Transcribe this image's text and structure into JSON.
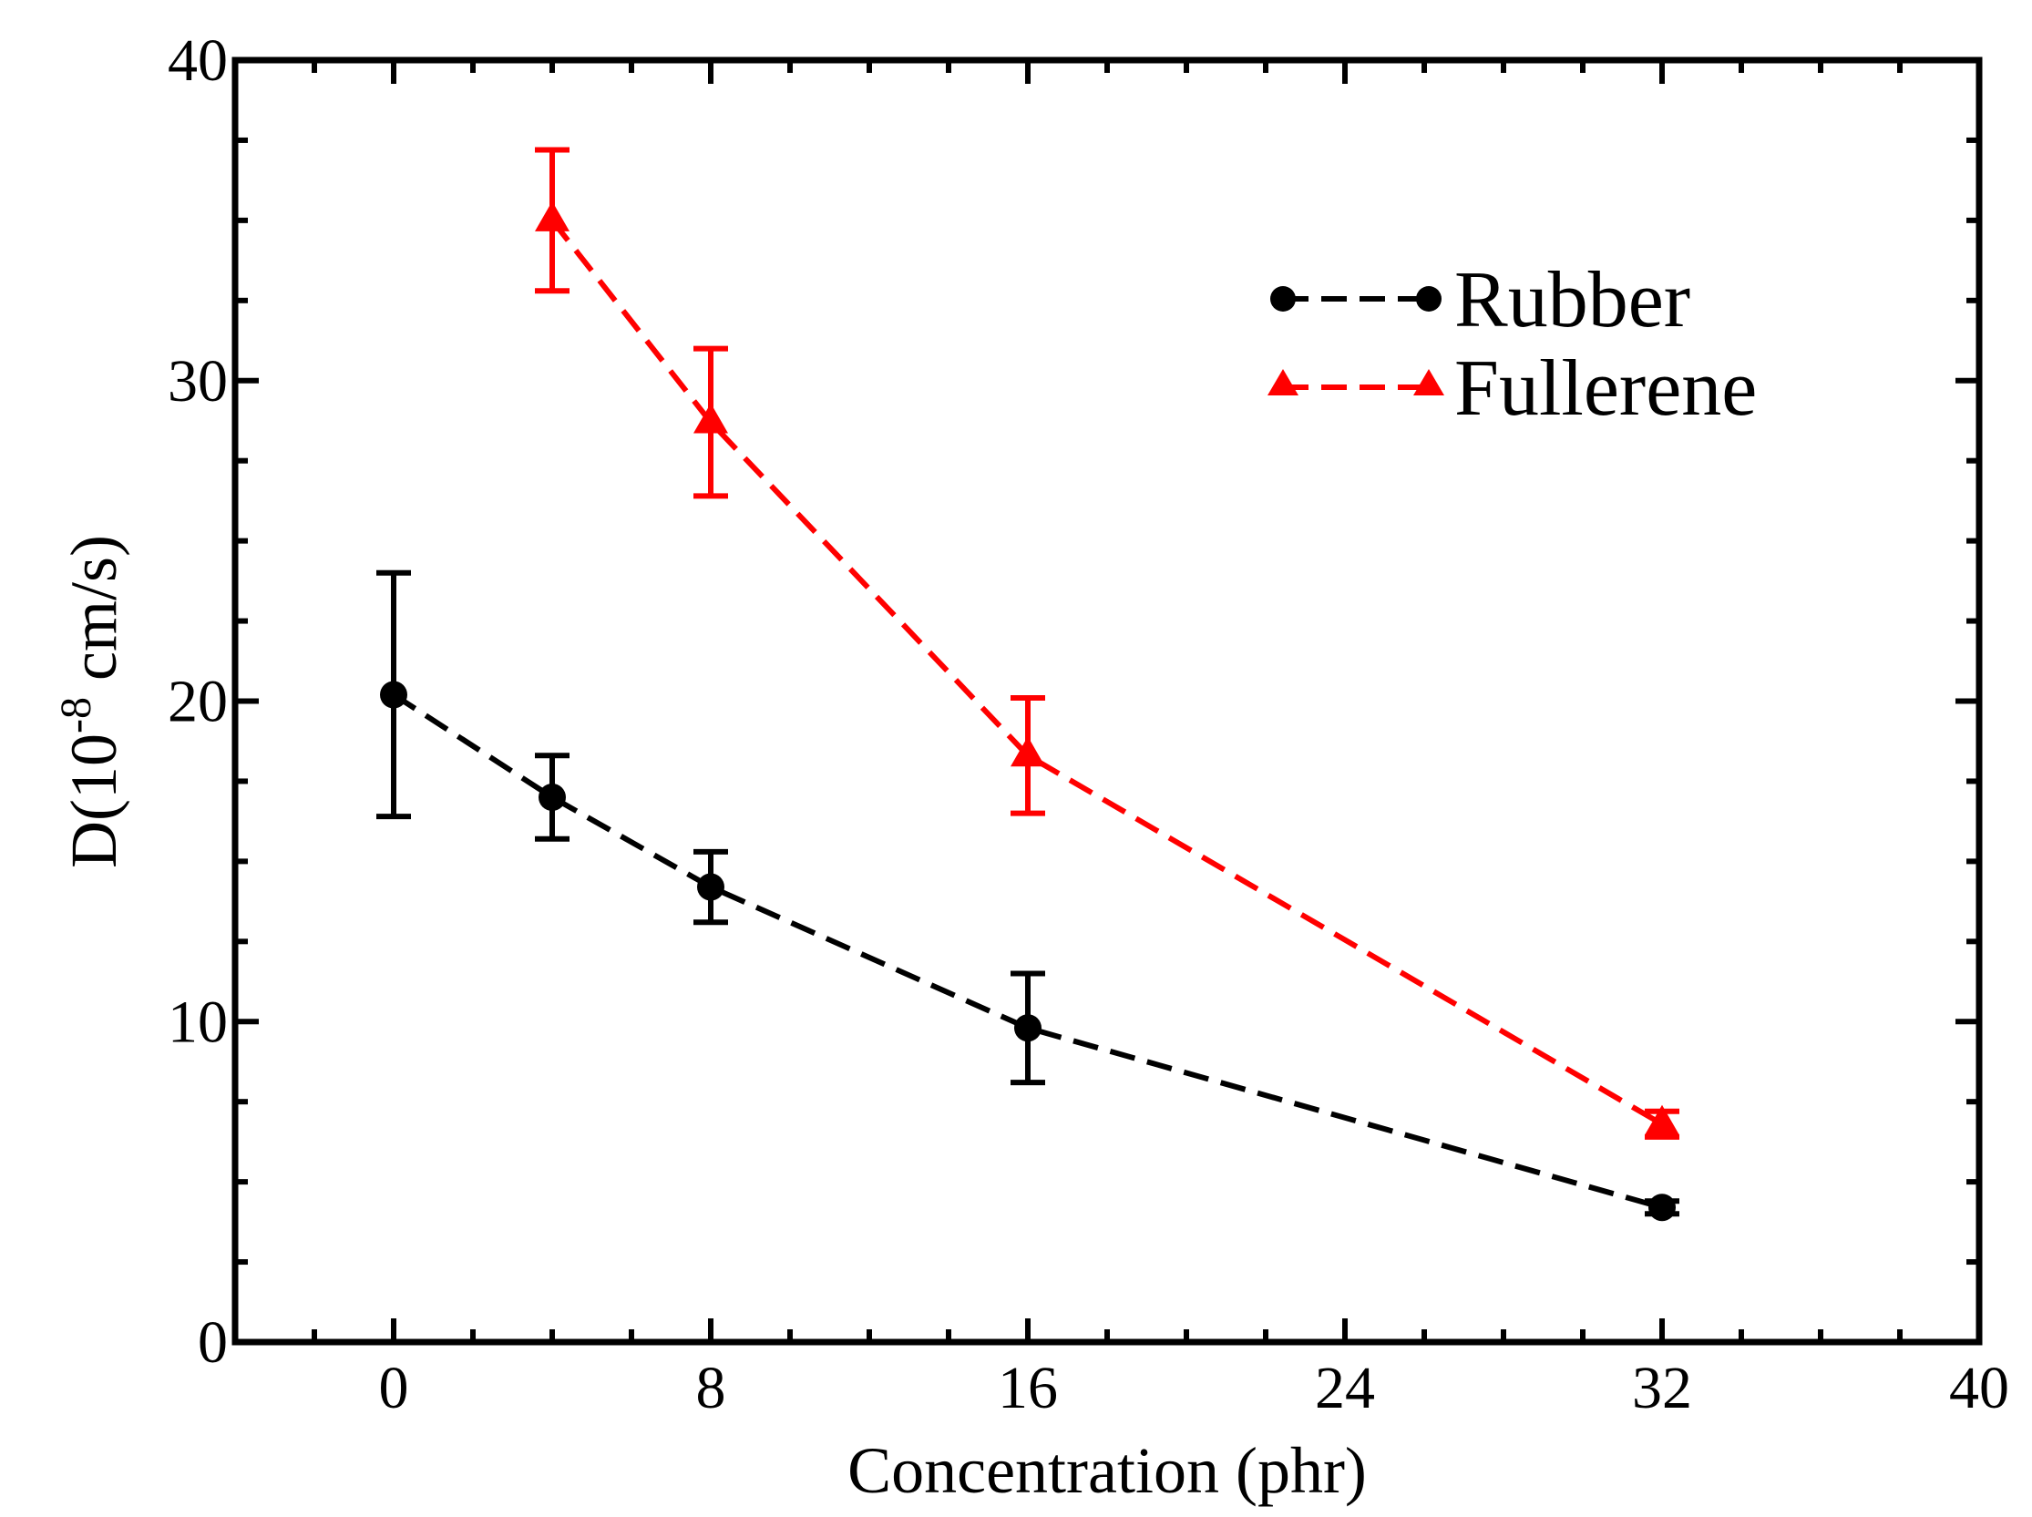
{
  "chart_data": {
    "type": "line",
    "title": "",
    "xlabel": "Concentration (phr)",
    "ylabel": {
      "prefix": "D(10",
      "exponent": "-8",
      "suffix": " cm/s)"
    },
    "xlim": [
      -4,
      40
    ],
    "ylim": [
      0,
      40
    ],
    "x_major_ticks": [
      0,
      8,
      16,
      24,
      32,
      40
    ],
    "y_major_ticks": [
      0,
      10,
      20,
      30,
      40
    ],
    "x_minor_step": 2,
    "y_minor_step": 2.5,
    "grid": false,
    "legend_position": "top-right",
    "series": [
      {
        "name": "Rubber",
        "color": "#000000",
        "marker": "circle",
        "line_style": "dashed",
        "x": [
          0,
          4,
          8,
          16,
          32
        ],
        "y": [
          20.2,
          17.0,
          14.2,
          9.8,
          4.2
        ],
        "yerr": [
          3.8,
          1.3,
          1.1,
          1.7,
          0.2
        ]
      },
      {
        "name": "Fullerene",
        "color": "#ff0000",
        "marker": "triangle",
        "line_style": "dashed",
        "x": [
          4,
          8,
          16,
          32
        ],
        "y": [
          35.0,
          28.7,
          18.3,
          6.8
        ],
        "yerr": [
          2.2,
          2.3,
          1.8,
          0.4
        ]
      }
    ]
  }
}
